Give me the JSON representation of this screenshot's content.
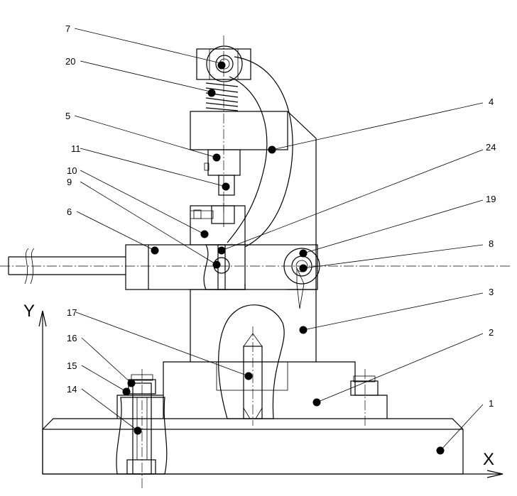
{
  "axes": {
    "x": "X",
    "y": "Y"
  },
  "callouts": [
    {
      "id": "c1",
      "label": "1"
    },
    {
      "id": "c2",
      "label": "2"
    },
    {
      "id": "c3",
      "label": "3"
    },
    {
      "id": "c4",
      "label": "4"
    },
    {
      "id": "c5",
      "label": "5"
    },
    {
      "id": "c6",
      "label": "6"
    },
    {
      "id": "c7",
      "label": "7"
    },
    {
      "id": "c8",
      "label": "8"
    },
    {
      "id": "c9",
      "label": "9"
    },
    {
      "id": "c10",
      "label": "10"
    },
    {
      "id": "c11",
      "label": "11"
    },
    {
      "id": "c14",
      "label": "14"
    },
    {
      "id": "c15",
      "label": "15"
    },
    {
      "id": "c16",
      "label": "16"
    },
    {
      "id": "c17",
      "label": "17"
    },
    {
      "id": "c19",
      "label": "19"
    },
    {
      "id": "c20",
      "label": "20"
    },
    {
      "id": "c24",
      "label": "24"
    }
  ]
}
